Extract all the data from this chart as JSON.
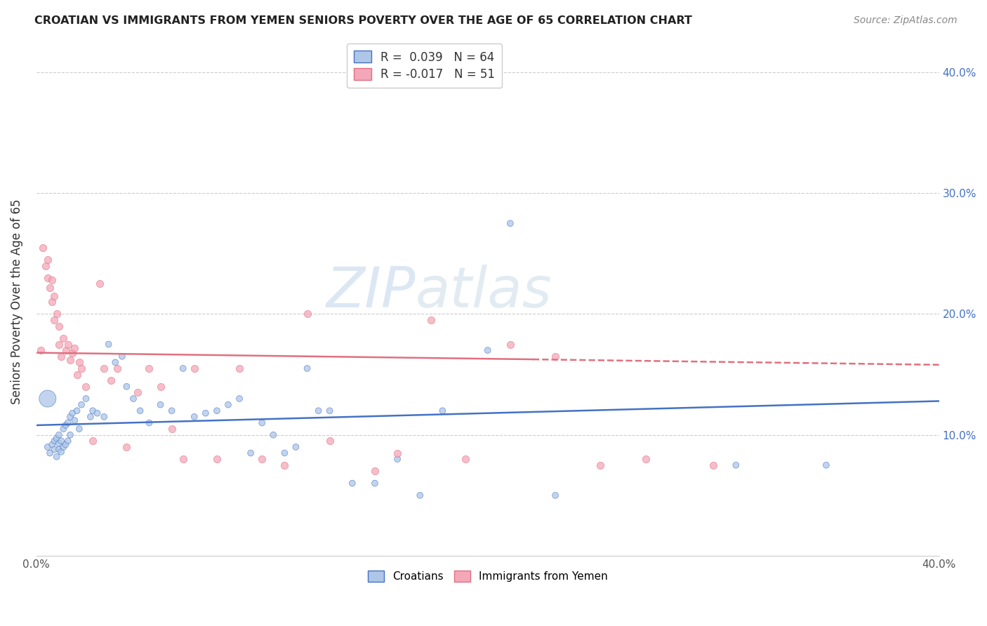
{
  "title": "CROATIAN VS IMMIGRANTS FROM YEMEN SENIORS POVERTY OVER THE AGE OF 65 CORRELATION CHART",
  "source": "Source: ZipAtlas.com",
  "ylabel": "Seniors Poverty Over the Age of 65",
  "xlim": [
    0.0,
    0.4
  ],
  "ylim": [
    0.0,
    0.42
  ],
  "yticks": [
    0.1,
    0.2,
    0.3,
    0.4
  ],
  "xticks": [
    0.0,
    0.05,
    0.1,
    0.15,
    0.2,
    0.25,
    0.3,
    0.35,
    0.4
  ],
  "ytick_labels_right": [
    "10.0%",
    "20.0%",
    "30.0%",
    "40.0%"
  ],
  "r_croatian": 0.039,
  "n_croatian": 64,
  "r_yemen": -0.017,
  "n_yemen": 51,
  "color_croatian": "#aec6e8",
  "color_croatian_line": "#4472c4",
  "color_yemen": "#f4a7b9",
  "color_yemen_line": "#e07080",
  "watermark_zip": "ZIP",
  "watermark_atlas": "atlas",
  "croatian_x": [
    0.005,
    0.006,
    0.007,
    0.008,
    0.008,
    0.009,
    0.009,
    0.01,
    0.01,
    0.01,
    0.011,
    0.011,
    0.012,
    0.012,
    0.013,
    0.013,
    0.014,
    0.014,
    0.015,
    0.015,
    0.016,
    0.017,
    0.018,
    0.019,
    0.02,
    0.022,
    0.024,
    0.025,
    0.027,
    0.03,
    0.032,
    0.035,
    0.038,
    0.04,
    0.043,
    0.046,
    0.05,
    0.055,
    0.06,
    0.065,
    0.07,
    0.075,
    0.08,
    0.085,
    0.09,
    0.095,
    0.1,
    0.105,
    0.11,
    0.115,
    0.12,
    0.125,
    0.13,
    0.14,
    0.15,
    0.16,
    0.17,
    0.18,
    0.2,
    0.21,
    0.23,
    0.31,
    0.35,
    0.005
  ],
  "croatian_y": [
    0.09,
    0.085,
    0.092,
    0.088,
    0.095,
    0.082,
    0.097,
    0.088,
    0.093,
    0.1,
    0.086,
    0.095,
    0.09,
    0.105,
    0.092,
    0.108,
    0.095,
    0.11,
    0.1,
    0.115,
    0.118,
    0.112,
    0.12,
    0.105,
    0.125,
    0.13,
    0.115,
    0.12,
    0.118,
    0.115,
    0.175,
    0.16,
    0.165,
    0.14,
    0.13,
    0.12,
    0.11,
    0.125,
    0.12,
    0.155,
    0.115,
    0.118,
    0.12,
    0.125,
    0.13,
    0.085,
    0.11,
    0.1,
    0.085,
    0.09,
    0.155,
    0.12,
    0.12,
    0.06,
    0.06,
    0.08,
    0.05,
    0.12,
    0.17,
    0.275,
    0.05,
    0.075,
    0.075,
    0.13
  ],
  "croatian_sizes": [
    40,
    40,
    40,
    40,
    40,
    40,
    40,
    40,
    40,
    40,
    40,
    40,
    40,
    40,
    40,
    40,
    40,
    40,
    40,
    40,
    40,
    40,
    40,
    40,
    40,
    40,
    40,
    40,
    40,
    40,
    40,
    40,
    40,
    40,
    40,
    40,
    40,
    40,
    40,
    40,
    40,
    40,
    40,
    40,
    40,
    40,
    40,
    40,
    40,
    40,
    40,
    40,
    40,
    40,
    40,
    40,
    40,
    40,
    40,
    40,
    40,
    40,
    40,
    300
  ],
  "yemen_x": [
    0.002,
    0.003,
    0.004,
    0.005,
    0.005,
    0.006,
    0.007,
    0.007,
    0.008,
    0.008,
    0.009,
    0.01,
    0.01,
    0.011,
    0.012,
    0.013,
    0.014,
    0.015,
    0.016,
    0.017,
    0.018,
    0.019,
    0.02,
    0.022,
    0.025,
    0.028,
    0.03,
    0.033,
    0.036,
    0.04,
    0.045,
    0.05,
    0.055,
    0.06,
    0.065,
    0.07,
    0.08,
    0.09,
    0.1,
    0.11,
    0.12,
    0.13,
    0.15,
    0.16,
    0.175,
    0.19,
    0.21,
    0.23,
    0.25,
    0.27,
    0.3
  ],
  "yemen_y": [
    0.17,
    0.255,
    0.24,
    0.23,
    0.245,
    0.222,
    0.21,
    0.228,
    0.195,
    0.215,
    0.2,
    0.175,
    0.19,
    0.165,
    0.18,
    0.17,
    0.175,
    0.162,
    0.168,
    0.172,
    0.15,
    0.16,
    0.155,
    0.14,
    0.095,
    0.225,
    0.155,
    0.145,
    0.155,
    0.09,
    0.135,
    0.155,
    0.14,
    0.105,
    0.08,
    0.155,
    0.08,
    0.155,
    0.08,
    0.075,
    0.2,
    0.095,
    0.07,
    0.085,
    0.195,
    0.08,
    0.175,
    0.165,
    0.075,
    0.08,
    0.075
  ],
  "trend_croatian_y0": 0.108,
  "trend_croatian_y1": 0.128,
  "trend_yemen_y0": 0.168,
  "trend_yemen_y1": 0.158,
  "trend_yemen_solid_end": 0.22,
  "grid_color": "#cccccc",
  "bg_color": "#ffffff"
}
